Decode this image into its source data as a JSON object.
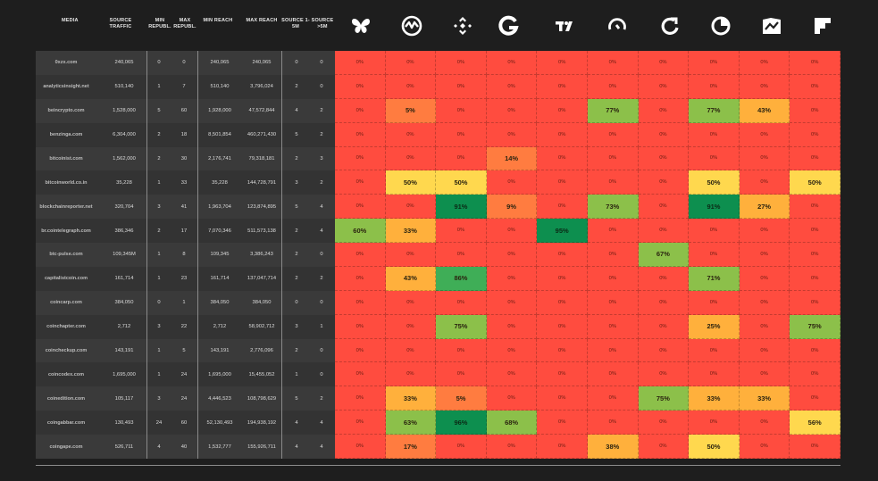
{
  "chart_data": {
    "type": "table",
    "columns": {
      "media": "MEDIA",
      "source_traffic": "SOURCE TRAFFIC",
      "min_republ": "MIN REPUBL.",
      "max_republ": "MAX REPUBL.",
      "min_reach": "MIN REACH",
      "max_reach": "MAX REACH",
      "source_1_5m": "SOURCE 1-5M",
      "source_gt5m": "SOURCE >5M"
    },
    "platform_icons": [
      "butterfly-icon",
      "meter-icon",
      "binance-icon",
      "g-circle-icon",
      "tradingview-icon",
      "arc-icon",
      "arrow-g-icon",
      "pie-icon",
      "chart-box-icon",
      "flipboard-icon"
    ],
    "rows": [
      {
        "media": "0xzx.com",
        "traffic": "240,065",
        "min_rep": "0",
        "max_rep": "0",
        "min_reach": "240,065",
        "max_reach": "240,065",
        "s15": "0",
        "s5": "0",
        "pct": [
          0,
          0,
          0,
          0,
          0,
          0,
          0,
          0,
          0,
          0
        ]
      },
      {
        "media": "analyticsinsight.net",
        "traffic": "510,140",
        "min_rep": "1",
        "max_rep": "7",
        "min_reach": "510,140",
        "max_reach": "3,796,024",
        "s15": "2",
        "s5": "0",
        "pct": [
          0,
          0,
          0,
          0,
          0,
          0,
          0,
          0,
          0,
          0
        ]
      },
      {
        "media": "beincrypto.com",
        "traffic": "1,528,000",
        "min_rep": "5",
        "max_rep": "60",
        "min_reach": "1,928,000",
        "max_reach": "47,572,844",
        "s15": "4",
        "s5": "2",
        "pct": [
          0,
          5,
          0,
          0,
          0,
          77,
          0,
          77,
          43,
          0
        ]
      },
      {
        "media": "benzinga.com",
        "traffic": "6,304,000",
        "min_rep": "2",
        "max_rep": "18",
        "min_reach": "8,501,854",
        "max_reach": "460,271,430",
        "s15": "5",
        "s5": "2",
        "pct": [
          0,
          0,
          0,
          0,
          0,
          0,
          0,
          0,
          0,
          0
        ]
      },
      {
        "media": "bitcoinist.com",
        "traffic": "1,562,000",
        "min_rep": "2",
        "max_rep": "30",
        "min_reach": "2,176,741",
        "max_reach": "79,318,181",
        "s15": "2",
        "s5": "3",
        "pct": [
          0,
          0,
          0,
          14,
          0,
          0,
          0,
          0,
          0,
          0
        ]
      },
      {
        "media": "bitcoinworld.co.in",
        "traffic": "35,228",
        "min_rep": "1",
        "max_rep": "33",
        "min_reach": "35,228",
        "max_reach": "144,728,791",
        "s15": "3",
        "s5": "2",
        "pct": [
          0,
          50,
          50,
          0,
          0,
          0,
          0,
          50,
          0,
          50
        ]
      },
      {
        "media": "blockchainreporter.net",
        "traffic": "320,704",
        "min_rep": "3",
        "max_rep": "41",
        "min_reach": "1,963,704",
        "max_reach": "123,874,895",
        "s15": "5",
        "s5": "4",
        "pct": [
          0,
          0,
          91,
          9,
          0,
          73,
          0,
          91,
          27,
          0
        ]
      },
      {
        "media": "br.cointelegraph.com",
        "traffic": "386,346",
        "min_rep": "2",
        "max_rep": "17",
        "min_reach": "7,070,346",
        "max_reach": "511,573,138",
        "s15": "2",
        "s5": "4",
        "pct": [
          60,
          33,
          0,
          0,
          95,
          0,
          0,
          0,
          0,
          0
        ]
      },
      {
        "media": "btc-pulse.com",
        "traffic": "109,345M",
        "min_rep": "1",
        "max_rep": "8",
        "min_reach": "109,345",
        "max_reach": "3,386,243",
        "s15": "2",
        "s5": "0",
        "pct": [
          0,
          0,
          0,
          0,
          0,
          0,
          67,
          0,
          0,
          0
        ]
      },
      {
        "media": "capitalistcoin.com",
        "traffic": "161,714",
        "min_rep": "1",
        "max_rep": "23",
        "min_reach": "161,714",
        "max_reach": "137,047,714",
        "s15": "2",
        "s5": "2",
        "pct": [
          0,
          43,
          86,
          0,
          0,
          0,
          0,
          71,
          0,
          0
        ]
      },
      {
        "media": "coincarp.com",
        "traffic": "384,050",
        "min_rep": "0",
        "max_rep": "1",
        "min_reach": "384,050",
        "max_reach": "384,050",
        "s15": "0",
        "s5": "0",
        "pct": [
          0,
          0,
          0,
          0,
          0,
          0,
          0,
          0,
          0,
          0
        ]
      },
      {
        "media": "coinchapter.com",
        "traffic": "2,712",
        "min_rep": "3",
        "max_rep": "22",
        "min_reach": "2,712",
        "max_reach": "58,902,712",
        "s15": "3",
        "s5": "1",
        "pct": [
          0,
          0,
          75,
          0,
          0,
          0,
          0,
          25,
          0,
          75
        ]
      },
      {
        "media": "coincheckup.com",
        "traffic": "143,191",
        "min_rep": "1",
        "max_rep": "5",
        "min_reach": "143,191",
        "max_reach": "2,776,096",
        "s15": "2",
        "s5": "0",
        "pct": [
          0,
          0,
          0,
          0,
          0,
          0,
          0,
          0,
          0,
          0
        ]
      },
      {
        "media": "coincodex.com",
        "traffic": "1,695,000",
        "min_rep": "1",
        "max_rep": "24",
        "min_reach": "1,695,000",
        "max_reach": "15,455,052",
        "s15": "1",
        "s5": "0",
        "pct": [
          0,
          0,
          0,
          0,
          0,
          0,
          0,
          0,
          0,
          0
        ]
      },
      {
        "media": "coinedition.com",
        "traffic": "105,117",
        "min_rep": "3",
        "max_rep": "24",
        "min_reach": "4,446,523",
        "max_reach": "108,798,629",
        "s15": "5",
        "s5": "2",
        "pct": [
          0,
          33,
          5,
          0,
          0,
          0,
          75,
          33,
          33,
          0
        ]
      },
      {
        "media": "coingabbar.com",
        "traffic": "130,493",
        "min_rep": "24",
        "max_rep": "60",
        "min_reach": "52,130,493",
        "max_reach": "194,938,192",
        "s15": "4",
        "s5": "4",
        "pct": [
          0,
          63,
          96,
          68,
          0,
          0,
          0,
          0,
          0,
          56
        ]
      },
      {
        "media": "coingape.com",
        "traffic": "526,711",
        "min_rep": "4",
        "max_rep": "40",
        "min_reach": "1,532,777",
        "max_reach": "155,926,711",
        "s15": "4",
        "s5": "4",
        "pct": [
          0,
          17,
          0,
          0,
          0,
          38,
          0,
          50,
          0,
          0
        ]
      }
    ],
    "pct_suffix": "%",
    "colors": {
      "zero": "#ff4c3f",
      "low": "#ff7c40",
      "mid": "#ffb03c",
      "half": "#ffd84e",
      "good": "#8cc04a",
      "high": "#3fae57",
      "top": "#0d8f4f"
    }
  }
}
